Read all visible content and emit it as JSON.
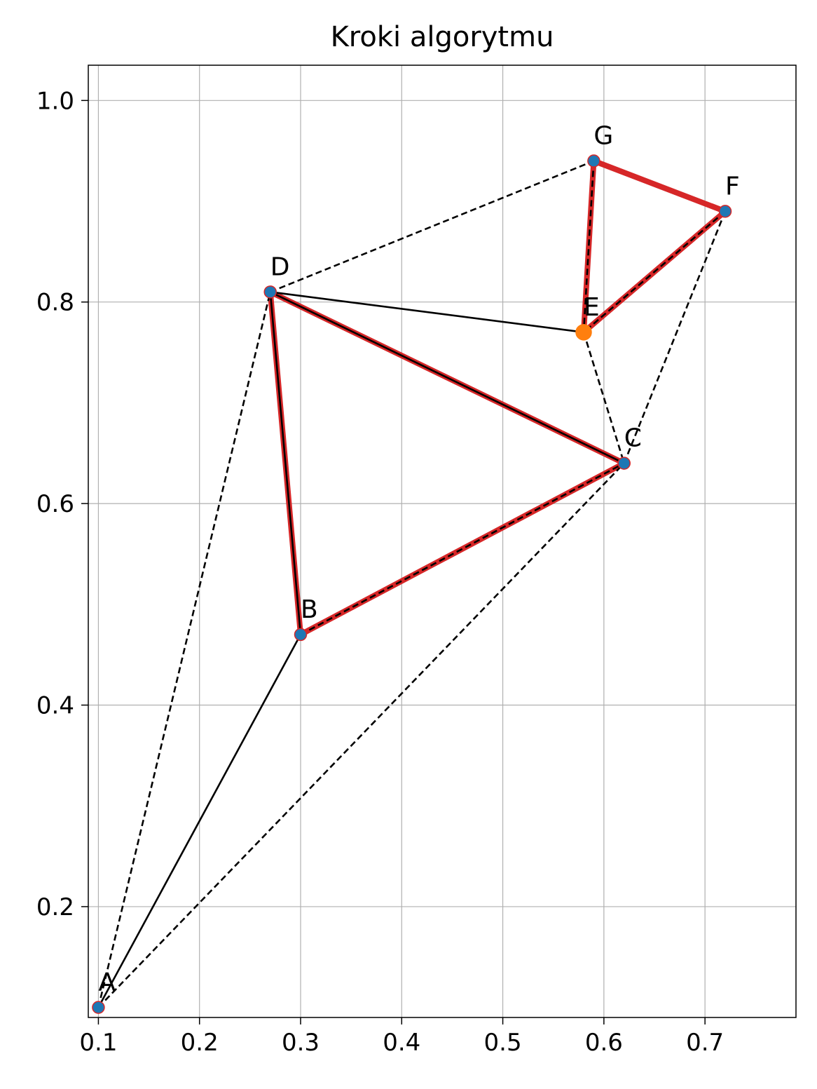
{
  "chart_data": {
    "type": "scatter",
    "title": "Kroki algorytmu",
    "xlabel": "",
    "ylabel": "",
    "xlim": [
      0.09,
      0.79
    ],
    "ylim": [
      0.09,
      1.035
    ],
    "grid": true,
    "x_ticks": [
      {
        "value": 0.1,
        "label": "0.1"
      },
      {
        "value": 0.2,
        "label": "0.2"
      },
      {
        "value": 0.3,
        "label": "0.3"
      },
      {
        "value": 0.4,
        "label": "0.4"
      },
      {
        "value": 0.5,
        "label": "0.5"
      },
      {
        "value": 0.6,
        "label": "0.6"
      },
      {
        "value": 0.7,
        "label": "0.7"
      }
    ],
    "y_ticks": [
      {
        "value": 0.2,
        "label": "0.2"
      },
      {
        "value": 0.4,
        "label": "0.4"
      },
      {
        "value": 0.6,
        "label": "0.6"
      },
      {
        "value": 0.8,
        "label": "0.8"
      },
      {
        "value": 1.0,
        "label": "1.0"
      }
    ],
    "points": [
      {
        "id": "A",
        "label": "A",
        "x": 0.1,
        "y": 0.1,
        "color": "#1f77b4"
      },
      {
        "id": "B",
        "label": "B",
        "x": 0.3,
        "y": 0.47,
        "color": "#1f77b4"
      },
      {
        "id": "C",
        "label": "C",
        "x": 0.62,
        "y": 0.64,
        "color": "#1f77b4"
      },
      {
        "id": "D",
        "label": "D",
        "x": 0.27,
        "y": 0.81,
        "color": "#1f77b4"
      },
      {
        "id": "E",
        "label": "E",
        "x": 0.58,
        "y": 0.77,
        "color": "#ff7f0e"
      },
      {
        "id": "F",
        "label": "F",
        "x": 0.72,
        "y": 0.89,
        "color": "#1f77b4"
      },
      {
        "id": "G",
        "label": "G",
        "x": 0.59,
        "y": 0.94,
        "color": "#1f77b4"
      }
    ],
    "highlighted_edges": [
      {
        "from": "D",
        "to": "B",
        "color": "#d62728"
      },
      {
        "from": "B",
        "to": "C",
        "color": "#d62728"
      },
      {
        "from": "C",
        "to": "D",
        "color": "#d62728"
      },
      {
        "from": "E",
        "to": "G",
        "color": "#d62728"
      },
      {
        "from": "G",
        "to": "F",
        "color": "#d62728"
      },
      {
        "from": "F",
        "to": "E",
        "color": "#d62728"
      }
    ],
    "solid_edges": [
      {
        "from": "A",
        "to": "B",
        "color": "#000000"
      },
      {
        "from": "B",
        "to": "D",
        "color": "#000000"
      },
      {
        "from": "D",
        "to": "C",
        "color": "#000000"
      },
      {
        "from": "D",
        "to": "E",
        "color": "#000000"
      }
    ],
    "dashed_edges": [
      {
        "from": "A",
        "to": "D",
        "color": "#000000"
      },
      {
        "from": "A",
        "to": "C",
        "color": "#000000"
      },
      {
        "from": "B",
        "to": "C",
        "color": "#000000"
      },
      {
        "from": "D",
        "to": "G",
        "color": "#000000"
      },
      {
        "from": "G",
        "to": "E",
        "color": "#000000"
      },
      {
        "from": "E",
        "to": "C",
        "color": "#000000"
      },
      {
        "from": "C",
        "to": "F",
        "color": "#000000"
      },
      {
        "from": "F",
        "to": "E",
        "color": "#000000"
      }
    ]
  }
}
